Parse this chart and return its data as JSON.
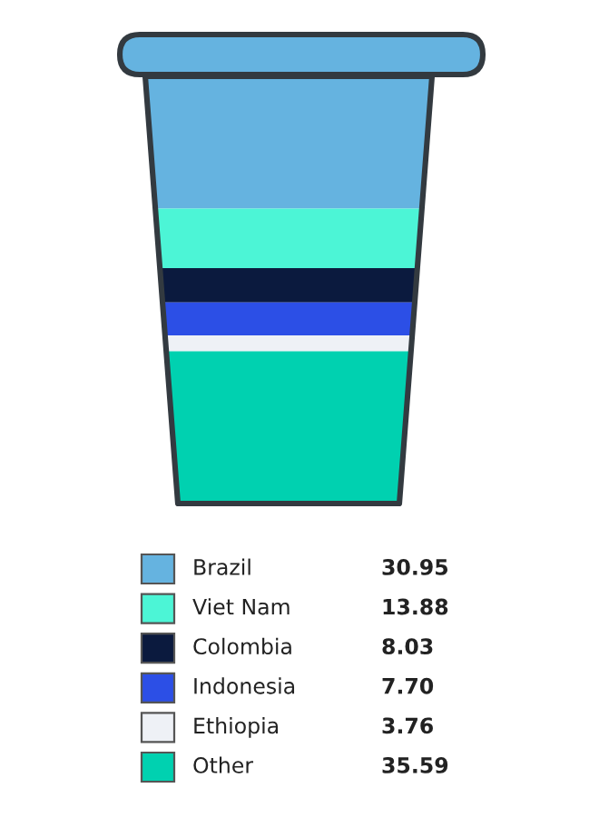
{
  "chart_data": {
    "type": "other",
    "categories": [
      "Brazil",
      "Viet Nam",
      "Colombia",
      "Indonesia",
      "Ethiopia",
      "Other"
    ],
    "values": [
      30.95,
      13.88,
      8.03,
      7.7,
      3.76,
      35.59
    ],
    "value_labels": [
      "30.95",
      "13.88",
      "8.03",
      "7.70",
      "3.76",
      "35.59"
    ],
    "colors": [
      "#65b3e0",
      "#4cf5d6",
      "#0b1a3e",
      "#2c4fe6",
      "#eef1f6",
      "#00d1b0"
    ]
  }
}
